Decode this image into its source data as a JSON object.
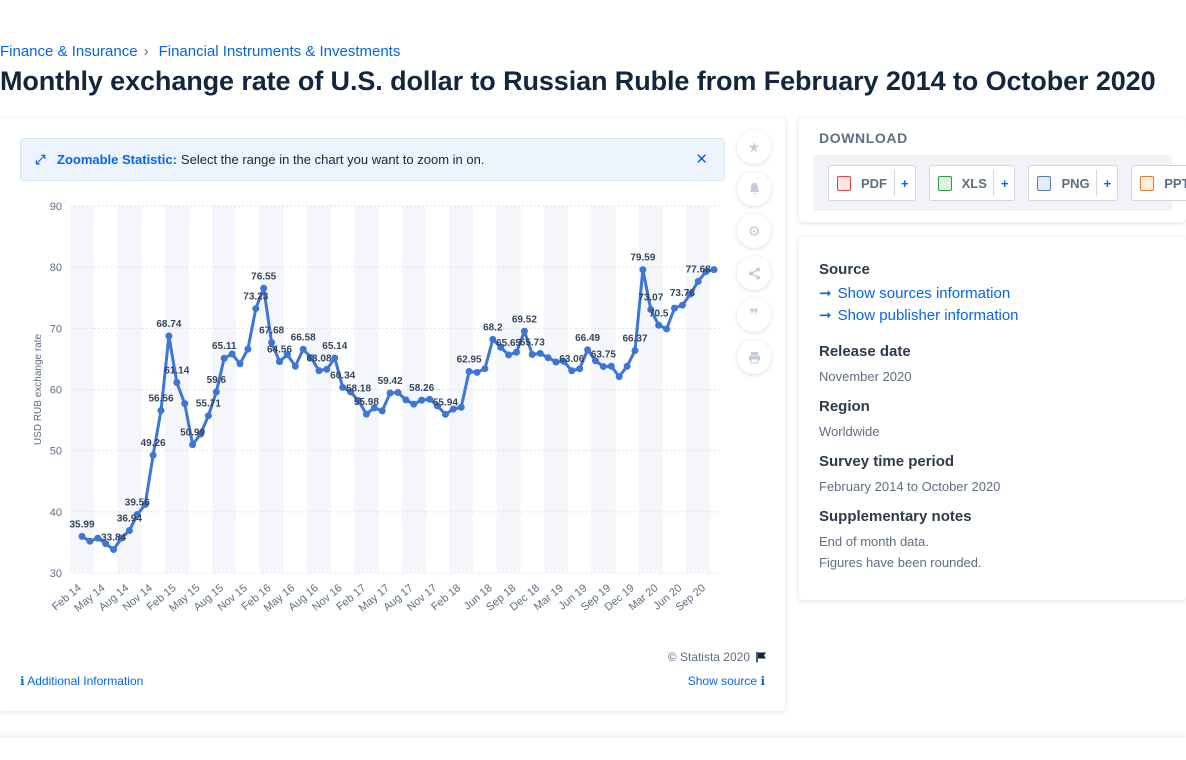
{
  "breadcrumb": {
    "item1": "Finance & Insurance",
    "separator": "›",
    "item2": "Financial Instruments & Investments"
  },
  "page_title": "Monthly exchange rate of U.S. dollar to Russian Ruble from February 2014 to October 2020",
  "zoom_banner": {
    "label": "Zoomable Statistic:",
    "text": "Select the range in the chart you want to zoom in on.",
    "close": "✕"
  },
  "tool_icons": [
    "star-icon",
    "bell-icon",
    "gear-icon",
    "share-icon",
    "quote-icon",
    "print-icon"
  ],
  "credit": "© Statista 2020",
  "additional_info": "Additional Information",
  "show_source": "Show source",
  "download": {
    "heading": "DOWNLOAD",
    "buttons": [
      {
        "label": "PDF",
        "plus": "+"
      },
      {
        "label": "XLS",
        "plus": "+"
      },
      {
        "label": "PNG",
        "plus": "+"
      },
      {
        "label": "PPT",
        "plus": "+"
      }
    ]
  },
  "info": {
    "source_heading": "Source",
    "source_link": "Show sources information",
    "publisher_link": "Show publisher information",
    "release_heading": "Release date",
    "release_value": "November 2020",
    "region_heading": "Region",
    "region_value": "Worldwide",
    "survey_heading": "Survey time period",
    "survey_value": "February 2014 to October 2020",
    "notes_heading": "Supplementary notes",
    "notes_line1": "End of month data.",
    "notes_line2": "Figures have been rounded."
  },
  "colors": {
    "accent": "#0666e5",
    "series": "#3d76d4",
    "band": "#f4f6f9"
  },
  "chart_data": {
    "type": "line",
    "title": "",
    "xlabel": "",
    "ylabel": "USD RUB exchange rate",
    "ylim": [
      30,
      90
    ],
    "yticks": [
      30,
      40,
      50,
      60,
      70,
      80,
      90
    ],
    "grid": true,
    "x_tick_labels": [
      "Feb 14",
      "May 14",
      "Aug 14",
      "Nov 14",
      "Feb 15",
      "May 15",
      "Aug 15",
      "Nov 15",
      "Feb 16",
      "May 16",
      "Aug 16",
      "Nov 16",
      "Feb 17",
      "May 17",
      "Aug 17",
      "Nov 17",
      "Feb 18",
      "Jun 18",
      "Sep 18",
      "Dec 18",
      "Mar 19",
      "Jun 19",
      "Sep 19",
      "Dec 19",
      "Mar 20",
      "Jun 20",
      "Sep 20"
    ],
    "categories": [
      "Feb 14",
      "Mar 14",
      "Apr 14",
      "May 14",
      "Jun 14",
      "Jul 14",
      "Aug 14",
      "Sep 14",
      "Oct 14",
      "Nov 14",
      "Dec 14",
      "Jan 15",
      "Feb 15",
      "Mar 15",
      "Apr 15",
      "May 15",
      "Jun 15",
      "Jul 15",
      "Aug 15",
      "Sep 15",
      "Oct 15",
      "Nov 15",
      "Dec 15",
      "Jan 16",
      "Feb 16",
      "Mar 16",
      "Apr 16",
      "May 16",
      "Jun 16",
      "Jul 16",
      "Aug 16",
      "Sep 16",
      "Oct 16",
      "Nov 16",
      "Dec 16",
      "Jan 17",
      "Feb 17",
      "Mar 17",
      "Apr 17",
      "May 17",
      "Jun 17",
      "Jul 17",
      "Aug 17",
      "Sep 17",
      "Oct 17",
      "Nov 17",
      "Dec 17",
      "Jan 18",
      "Feb 18",
      "Mar 18",
      "Apr 18",
      "May 18",
      "Jun 18",
      "Jul 18",
      "Aug 18",
      "Sep 18",
      "Oct 18",
      "Nov 18",
      "Dec 18",
      "Jan 19",
      "Feb 19",
      "Mar 19",
      "Apr 19",
      "May 19",
      "Jun 19",
      "Jul 19",
      "Aug 19",
      "Sep 19",
      "Oct 19",
      "Nov 19",
      "Dec 19",
      "Jan 20",
      "Feb 20",
      "Mar 20",
      "Apr 20",
      "May 20",
      "Jun 20",
      "Jul 20",
      "Aug 20",
      "Sep 20",
      "Oct 20"
    ],
    "series": [
      {
        "values": [
          35.99,
          35.2,
          35.7,
          34.8,
          33.84,
          35.7,
          36.94,
          39.56,
          41.2,
          49.26,
          56.56,
          68.74,
          61.14,
          57.7,
          50.99,
          52.7,
          55.71,
          59.6,
          65.11,
          65.8,
          64.2,
          66.6,
          73.23,
          76.55,
          67.68,
          64.56,
          65.7,
          63.8,
          66.58,
          65.2,
          63.08,
          63.3,
          65.14,
          60.34,
          59.6,
          58.18,
          55.98,
          57.0,
          56.5,
          59.42,
          59.5,
          58.3,
          57.6,
          58.26,
          58.4,
          57.3,
          55.94,
          56.8,
          57.1,
          62.95,
          62.8,
          63.4,
          68.2,
          66.9,
          65.65,
          66.1,
          69.52,
          65.73,
          65.9,
          65.2,
          64.5,
          64.6,
          63.06,
          63.4,
          66.49,
          64.7,
          63.75,
          63.8,
          62.1,
          63.8,
          66.37,
          79.59,
          73.07,
          70.5,
          69.9,
          73.3,
          73.78,
          75.6,
          77.68,
          79.3,
          79.6
        ],
        "labels": {
          "0": "35.99",
          "4": "33.84",
          "6": "36.94",
          "7": "39.56",
          "9": "49.26",
          "10": "56.56",
          "11": "68.74",
          "12": "61.14",
          "14": "50.99",
          "16": "55.71",
          "17": "59.6",
          "18": "65.11",
          "22": "73.23",
          "23": "76.55",
          "24": "67.68",
          "25": "64.56",
          "28": "66.58",
          "30": "63.08",
          "32": "65.14",
          "33": "60.34",
          "35": "58.18",
          "36": "55.98",
          "39": "59.42",
          "43": "58.26",
          "46": "55.94",
          "49": "62.95",
          "52": "68.2",
          "54": "65.65",
          "56": "69.52",
          "57": "65.73",
          "62": "63.06",
          "64": "66.49",
          "66": "63.75",
          "70": "66.37",
          "71": "79.59",
          "72": "73.07",
          "73": "70.5",
          "76": "73.78",
          "78": "77.68"
        }
      }
    ]
  }
}
